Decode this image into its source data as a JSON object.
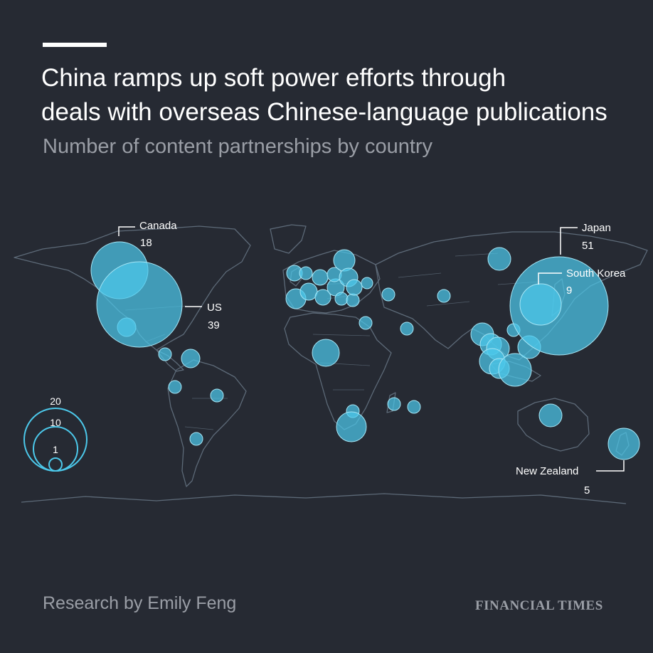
{
  "header": {
    "title_line1": "China ramps up soft power efforts through",
    "title_line2": "deals with overseas Chinese-language publications",
    "subtitle": "Number of content partnerships by country"
  },
  "callouts": {
    "canada": {
      "name": "Canada",
      "value": "18"
    },
    "us": {
      "name": "US",
      "value": "39"
    },
    "japan": {
      "name": "Japan",
      "value": "51"
    },
    "south_korea": {
      "name": "South Korea",
      "value": "9"
    },
    "new_zealand": {
      "name": "New Zealand",
      "value": "5"
    }
  },
  "legend": {
    "title": "",
    "size_20": "20",
    "size_10": "10",
    "size_1": "1"
  },
  "footer": {
    "credit": "Research by Emily Feng",
    "brand": "FINANCIAL TIMES"
  },
  "colors": {
    "background": "#262a33",
    "bubble": "#4cc8ea",
    "land_outline": "#5d6a78",
    "text": "#ffffff",
    "muted_text": "#9a9ea6"
  },
  "chart_data": {
    "type": "proportional-symbol-map",
    "measure": "content partnerships",
    "labelled_countries": [
      {
        "country": "Canada",
        "value": 18
      },
      {
        "country": "US",
        "value": 39
      },
      {
        "country": "Japan",
        "value": 51
      },
      {
        "country": "South Korea",
        "value": 9
      },
      {
        "country": "New Zealand",
        "value": 5
      }
    ],
    "size_legend": [
      20,
      10,
      1
    ]
  }
}
